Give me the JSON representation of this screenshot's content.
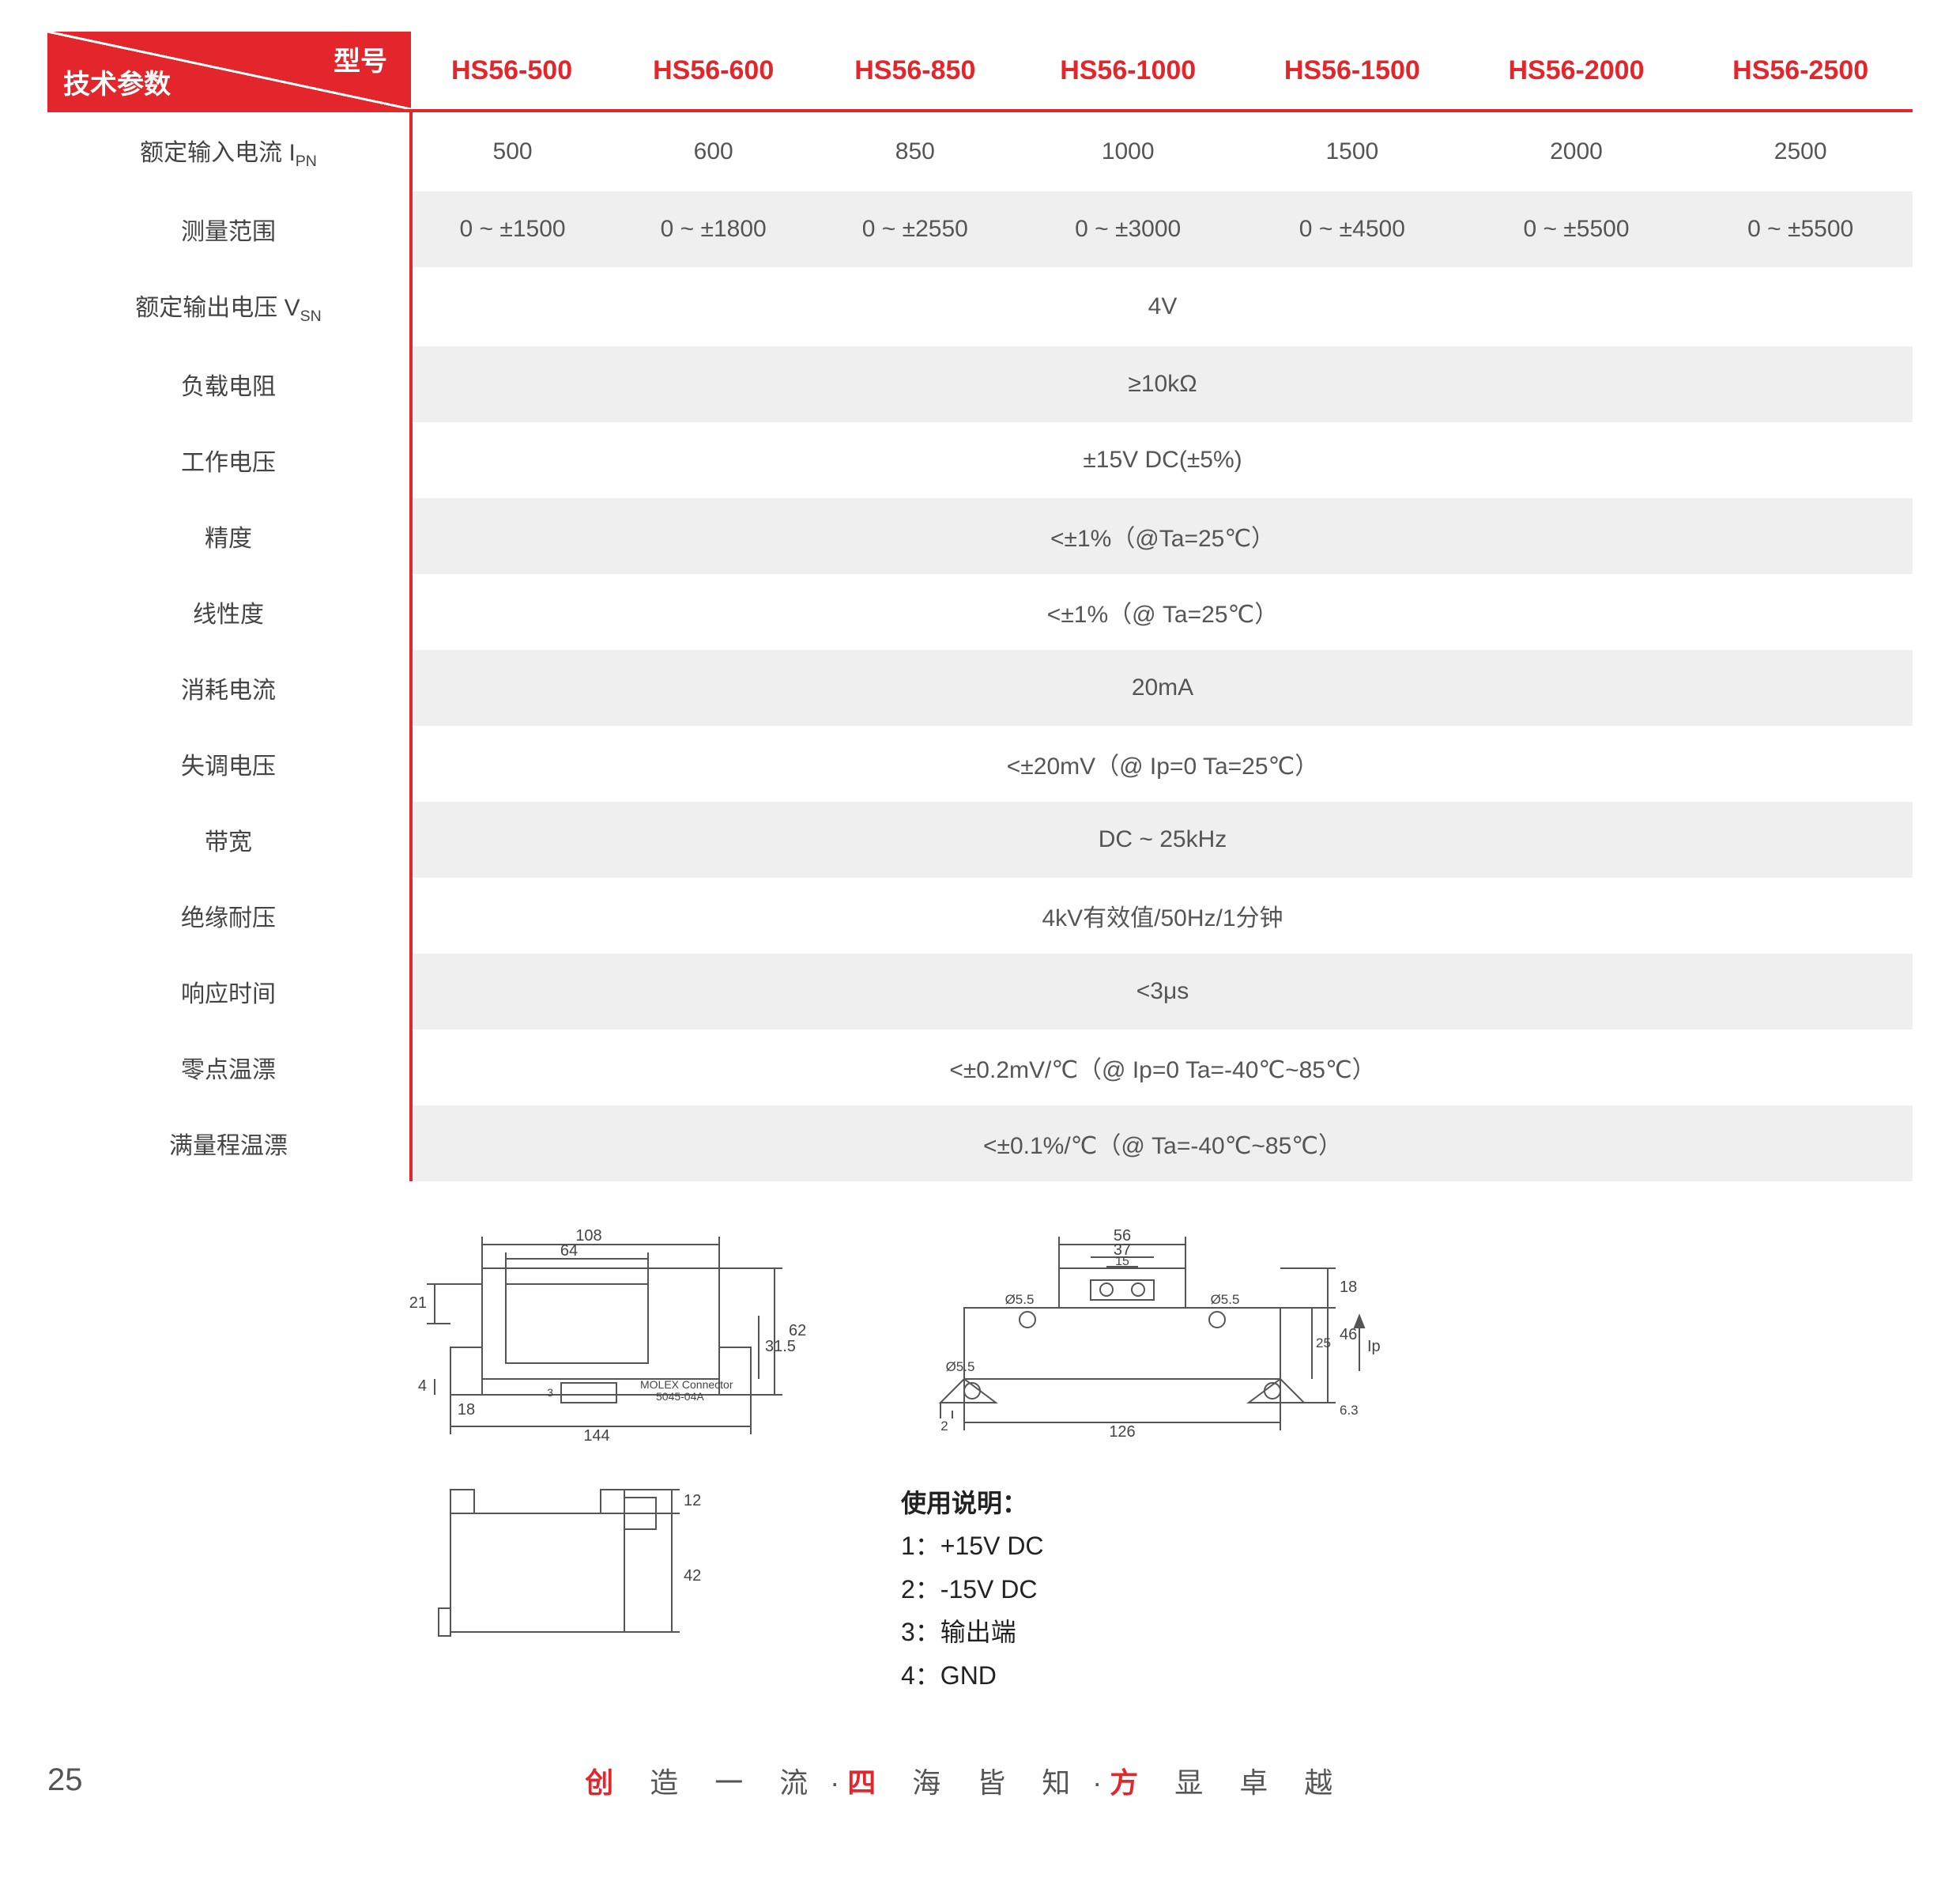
{
  "colors": {
    "accent_red": "#e3262b",
    "row_odd_bg": "#efefef",
    "row_even_bg": "#ffffff",
    "text": "#555555",
    "diagram_stroke": "#666666"
  },
  "header": {
    "model_label": "型号",
    "param_label": "技术参数",
    "models": [
      "HS56-500",
      "HS56-600",
      "HS56-850",
      "HS56-1000",
      "HS56-1500",
      "HS56-2000",
      "HS56-2500"
    ]
  },
  "table": {
    "rows": [
      {
        "param_html": "额定输入电流 I<sub>PN</sub>",
        "cells": [
          "500",
          "600",
          "850",
          "1000",
          "1500",
          "2000",
          "2500"
        ],
        "span": false
      },
      {
        "param_html": "测量范围",
        "cells": [
          "0 ~ ±1500",
          "0 ~ ±1800",
          "0 ~ ±2550",
          "0 ~ ±3000",
          "0 ~ ±4500",
          "0 ~ ±5500",
          "0 ~ ±5500"
        ],
        "span": false
      },
      {
        "param_html": "额定输出电压 V<sub>SN</sub>",
        "value": "4V",
        "span": true
      },
      {
        "param_html": "负载电阻",
        "value": "≥10kΩ",
        "span": true
      },
      {
        "param_html": "工作电压",
        "value": "±15V DC(±5%)",
        "span": true
      },
      {
        "param_html": "精度",
        "value": "<±1%（@Ta=25℃）",
        "span": true
      },
      {
        "param_html": "线性度",
        "value": "<±1%（@ Ta=25℃）",
        "span": true
      },
      {
        "param_html": "消耗电流",
        "value": "20mA",
        "span": true
      },
      {
        "param_html": "失调电压",
        "value": "<±20mV（@ Ip=0 Ta=25℃）",
        "span": true
      },
      {
        "param_html": "带宽",
        "value": "DC ~ 25kHz",
        "span": true
      },
      {
        "param_html": "绝缘耐压",
        "value": "4kV有效值/50Hz/1分钟",
        "span": true
      },
      {
        "param_html": "响应时间",
        "value": "<3μs",
        "span": true
      },
      {
        "param_html": "零点温漂",
        "value": "<±0.2mV/℃（@ Ip=0 Ta=-40℃~85℃）",
        "span": true
      },
      {
        "param_html": "满量程温漂",
        "value": "<±0.1%/℃（@ Ta=-40℃~85℃）",
        "span": true
      }
    ]
  },
  "diagrams": {
    "top_view": {
      "dims": {
        "outer_w": "108",
        "inner_w": "64",
        "total_w": "144",
        "h_left_top": "21",
        "h_left_bot": "4",
        "h_right": "62",
        "h_right_in": "31.5",
        "conn_left": "18",
        "conn_label1": "MOLEX Connector",
        "conn_label2": "5045-04A",
        "conn_pin": "3"
      }
    },
    "side_view": {
      "dims": {
        "top_w": "56",
        "mid_w": "37",
        "slot_w": "15",
        "hole": "Ø5.5",
        "hole2": "Ø5.5",
        "body_w": "126",
        "h_top": "18",
        "h_mid": "25",
        "h_total": "46",
        "margin_l": "2",
        "margin_b": "6.3",
        "arrow": "Ip"
      }
    },
    "front_view": {
      "dims": {
        "h_top": "12",
        "h_body": "42"
      }
    }
  },
  "usage": {
    "title": "使用说明：",
    "lines": [
      "1：+15V DC",
      "2：-15V DC",
      "3：输出端",
      "4：GND"
    ]
  },
  "footer": {
    "page": "25",
    "slogan_parts": [
      {
        "red": "创",
        "rest": " 造 一 流"
      },
      {
        "sep": "·"
      },
      {
        "red": "四",
        "rest": " 海 皆 知"
      },
      {
        "sep": "·"
      },
      {
        "red": "方",
        "rest": " 显 卓 越"
      }
    ]
  }
}
